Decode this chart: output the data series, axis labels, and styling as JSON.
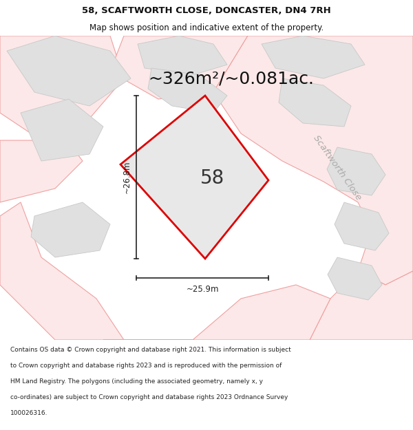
{
  "title_line1": "58, SCAFTWORTH CLOSE, DONCASTER, DN4 7RH",
  "title_line2": "Map shows position and indicative extent of the property.",
  "area_text": "~326m²/~0.081ac.",
  "label_number": "58",
  "dim_width": "~25.9m",
  "dim_height": "~26.8m",
  "road_label": "Scaftworth Close",
  "footer_lines": [
    "Contains OS data © Crown copyright and database right 2021. This information is subject",
    "to Crown copyright and database rights 2023 and is reproduced with the permission of",
    "HM Land Registry. The polygons (including the associated geometry, namely x, y",
    "co-ordinates) are subject to Crown copyright and database rights 2023 Ordnance Survey",
    "100026316."
  ],
  "map_bg": "#f5f5f5",
  "plot_fill": "#e8e8e8",
  "plot_edge": "#dd0000",
  "road_line_color": "#f0a0a0",
  "road_fill_color": "#fce8e8",
  "building_fill": "#e0e0e0",
  "building_edge": "#c8c8c8",
  "white_fill": "#ffffff",
  "title_fontsize": 9.5,
  "subtitle_fontsize": 8.5,
  "area_fontsize": 18,
  "number_fontsize": 20,
  "dim_fontsize": 8.5,
  "road_label_fontsize": 9.5,
  "footer_fontsize": 6.5,
  "dim_line_color": "#222222",
  "text_color": "#111111",
  "road_label_color": "#aaaaaa"
}
